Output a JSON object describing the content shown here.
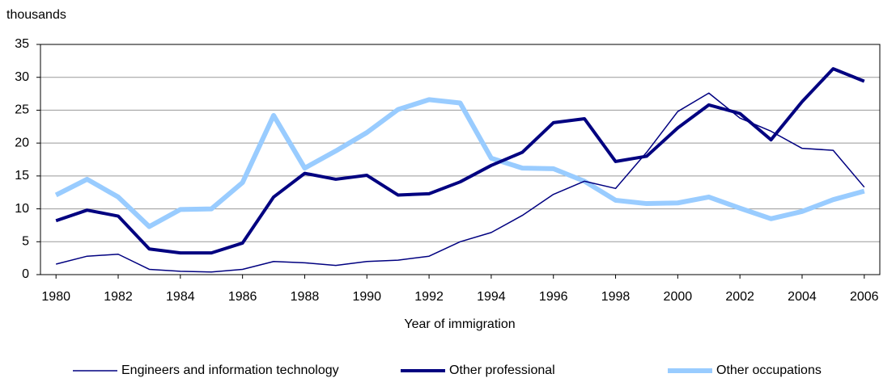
{
  "chart_data": {
    "type": "line",
    "y_label": "thousands",
    "x_label": "Year of immigration",
    "x": [
      1980,
      1981,
      1982,
      1983,
      1984,
      1985,
      1986,
      1987,
      1988,
      1989,
      1990,
      1991,
      1992,
      1993,
      1994,
      1995,
      1996,
      1997,
      1998,
      1999,
      2000,
      2001,
      2002,
      2003,
      2004,
      2005,
      2006
    ],
    "series": [
      {
        "name": "Engineers and information technology",
        "color": "#000080",
        "values": [
          1.6,
          2.8,
          3.1,
          0.8,
          0.5,
          0.4,
          0.8,
          2.0,
          1.8,
          1.4,
          2.0,
          2.2,
          2.8,
          5.0,
          6.4,
          9.0,
          12.2,
          14.2,
          13.1,
          18.6,
          24.8,
          27.6,
          23.8,
          21.8,
          19.2,
          18.9,
          13.3
        ]
      },
      {
        "name": "Other professional",
        "color": "#000080",
        "values": [
          8.2,
          9.8,
          8.9,
          3.9,
          3.3,
          3.3,
          4.8,
          11.8,
          15.4,
          14.5,
          15.1,
          12.1,
          12.3,
          14.1,
          16.6,
          18.6,
          23.1,
          23.7,
          17.2,
          18.0,
          22.3,
          25.8,
          24.5,
          20.5,
          26.3,
          31.3,
          29.4
        ]
      },
      {
        "name": "Other occupations",
        "color": "#99ccff",
        "values": [
          12.1,
          14.5,
          11.8,
          7.3,
          9.9,
          10.0,
          14.0,
          24.2,
          16.2,
          18.8,
          21.6,
          25.1,
          26.6,
          26.1,
          17.7,
          16.2,
          16.1,
          14.2,
          11.3,
          10.8,
          10.9,
          11.8,
          10.1,
          8.5,
          9.6,
          11.4,
          12.7
        ]
      }
    ],
    "xlim": [
      1979.5,
      2006.5
    ],
    "xticks": [
      1980,
      1982,
      1984,
      1986,
      1988,
      1990,
      1992,
      1994,
      1996,
      1998,
      2000,
      2002,
      2004,
      2006
    ],
    "ylim": [
      0,
      35
    ],
    "yticks": [
      0,
      5,
      10,
      15,
      20,
      25,
      30,
      35
    ],
    "grid": true,
    "legend": "bottom"
  }
}
